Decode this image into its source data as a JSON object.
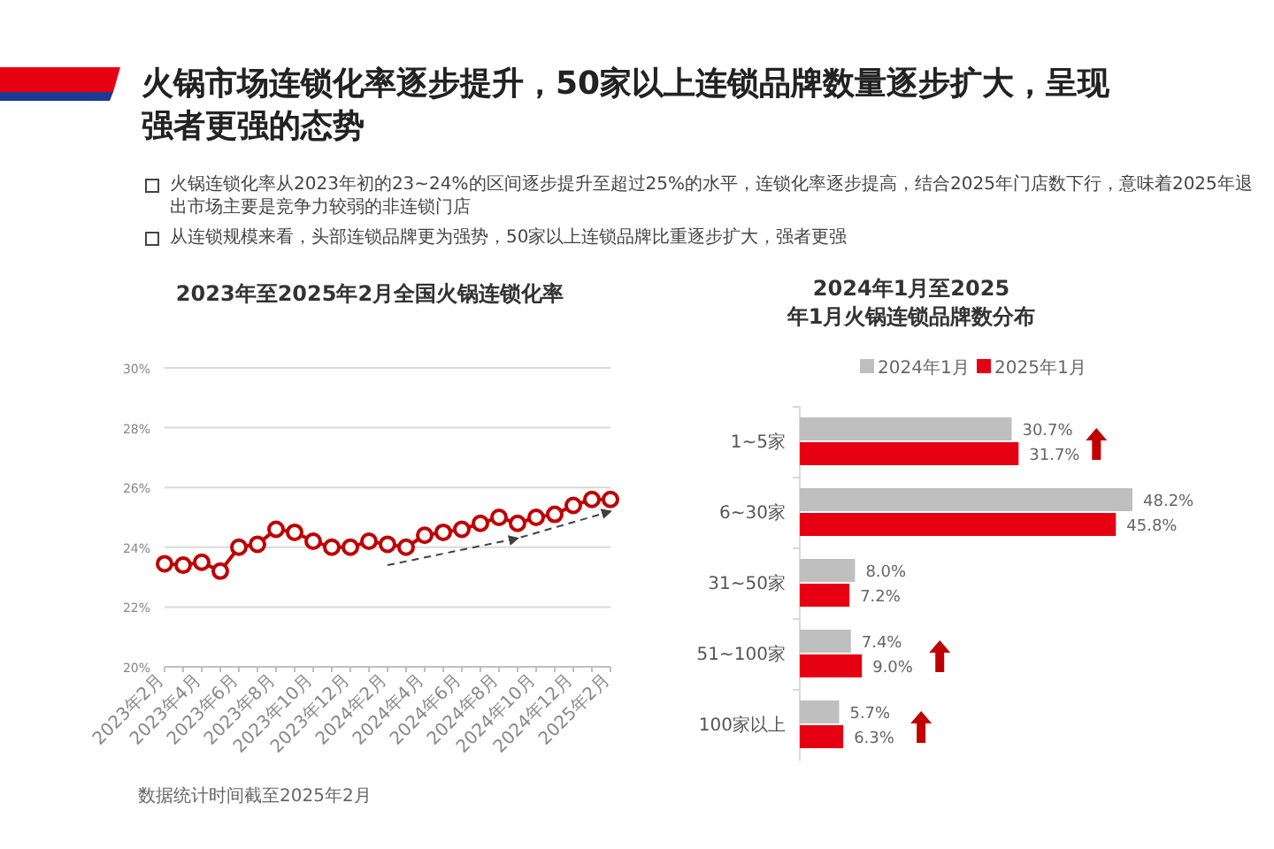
{
  "chart_data": [
    {
      "type": "other",
      "title": "火锅市场连锁化率逐步提升，50家以上连锁品牌数量逐步扩大，呈现强者更强的态势",
      "annotations": [
        "火锅连锁化率从2023年初的23~24%的区间逐步提升至超过25%的水平，连锁化率逐步提高，结合2025年门店数下行，意味着2025年退出市场主要是竞争力较弱的非连锁门店",
        "从连锁规模来看，头部连锁品牌更为强势，50家以上连锁品牌比重逐步扩大，强者更强"
      ]
    },
    {
      "type": "line",
      "title": "2023年至2025年2月全国火锅连锁化率",
      "categories": [
        "2023年2月",
        null,
        "2023年4月",
        null,
        "2023年6月",
        null,
        "2023年8月",
        null,
        "2023年10月",
        null,
        "2023年12月",
        null,
        "2024年2月",
        null,
        "2024年4月",
        null,
        "2024年6月",
        null,
        "2024年8月",
        null,
        "2024年10月",
        null,
        "2024年12月",
        null,
        "2025年2月"
      ],
      "series": [
        {
          "color": "#c00000",
          "marker": "circle",
          "values": [
            23.45,
            23.4,
            23.5,
            23.2,
            24.0,
            24.1,
            24.6,
            24.5,
            24.2,
            24.0,
            24.0,
            24.2,
            24.1,
            24.0,
            24.4,
            24.5,
            24.6,
            24.8,
            25.0,
            24.8,
            25.0,
            25.1,
            25.4,
            25.6,
            25.6
          ]
        },
        {
          "color": "#404040",
          "marker": "none",
          "line_style": "dashed",
          "values": [
            null,
            null,
            null,
            null,
            null,
            null,
            null,
            null,
            null,
            null,
            null,
            null,
            23.4,
            null,
            null,
            null,
            null,
            null,
            null,
            24.3,
            null,
            null,
            null,
            null,
            25.2
          ]
        }
      ],
      "ylim": [
        20,
        30
      ],
      "yticks": [
        {
          "value": 20,
          "label": "20%"
        },
        {
          "value": 22,
          "label": "22%"
        },
        {
          "value": 24,
          "label": "24%"
        },
        {
          "value": 26,
          "label": "26%"
        },
        {
          "value": 28,
          "label": "28%"
        },
        {
          "value": 30,
          "label": "30%"
        }
      ],
      "grid": "y",
      "annotations": [
        "数据统计时间截至2025年2月"
      ]
    },
    {
      "type": "bar",
      "orientation": "horizontal",
      "title": "2024年1月至2025年1月火锅连锁品牌数分布",
      "categories": [
        "1~5家",
        "6~30家",
        "31~50家",
        "51~100家",
        "100家以上"
      ],
      "series": [
        {
          "name": "2024年1月",
          "color": "#bfbfbf",
          "values": [
            30.7,
            48.2,
            8.0,
            7.4,
            5.7
          ],
          "value_labels": [
            "30.7%",
            "48.2%",
            "8.0%",
            "7.4%",
            "5.7%"
          ]
        },
        {
          "name": "2025年1月",
          "color": "#e60012",
          "values": [
            31.7,
            45.8,
            7.2,
            9.0,
            6.3
          ],
          "value_labels": [
            "31.7%",
            "45.8%",
            "7.2%",
            "9.0%",
            "6.3%"
          ]
        }
      ],
      "legend": "top"
    }
  ]
}
